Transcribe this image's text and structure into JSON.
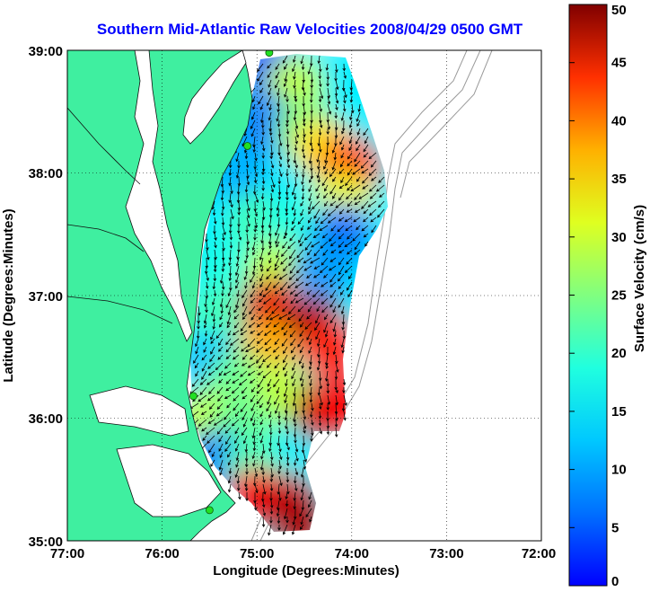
{
  "title": "Southern Mid-Atlantic Raw Velocities 2008/04/29 0500 GMT",
  "x_axis": {
    "label": "Longitude (Degrees:Minutes)",
    "ticks": [
      {
        "value": -77,
        "label": "77:00"
      },
      {
        "value": -76,
        "label": "76:00"
      },
      {
        "value": -75,
        "label": "75:00"
      },
      {
        "value": -74,
        "label": "74:00"
      },
      {
        "value": -73,
        "label": "73:00"
      },
      {
        "value": -72,
        "label": "72:00"
      }
    ],
    "range": [
      -77,
      -72
    ]
  },
  "y_axis": {
    "label": "Latitude (Degrees:Minutes)",
    "ticks": [
      {
        "value": 39,
        "label": "39:00"
      },
      {
        "value": 38,
        "label": "38:00"
      },
      {
        "value": 37,
        "label": "37:00"
      },
      {
        "value": 36,
        "label": "36:00"
      },
      {
        "value": 35,
        "label": "35:00"
      }
    ],
    "range": [
      35,
      39
    ]
  },
  "grid": "dotted",
  "colorbar": {
    "label": "Surface Velocity (cm/s)",
    "range": [
      0,
      50
    ],
    "ticks": [
      {
        "value": 0,
        "label": "0"
      },
      {
        "value": 5,
        "label": "5"
      },
      {
        "value": 10,
        "label": "10"
      },
      {
        "value": 15,
        "label": "15"
      },
      {
        "value": 20,
        "label": "20"
      },
      {
        "value": 25,
        "label": "25"
      },
      {
        "value": 30,
        "label": "30"
      },
      {
        "value": 35,
        "label": "35"
      },
      {
        "value": 40,
        "label": "40"
      },
      {
        "value": 45,
        "label": "45"
      },
      {
        "value": 50,
        "label": "50"
      }
    ],
    "colormap": "jet"
  },
  "colors": {
    "land": "#3fefa0",
    "title": "#0000ff",
    "vectors": "#000000",
    "bathymetry": "#9a9a9a",
    "stations": "#22e022"
  },
  "chart_data": {
    "type": "heatmap",
    "title": "Southern Mid-Atlantic Raw Velocities 2008/04/29 0500 GMT",
    "xlabel": "Longitude (Degrees:Minutes)",
    "ylabel": "Latitude (Degrees:Minutes)",
    "xlim": [
      -77,
      -72
    ],
    "ylim": [
      35,
      39
    ],
    "value_label": "Surface Velocity (cm/s)",
    "value_range": [
      0,
      50
    ],
    "regions": [
      {
        "lon": -74.9,
        "lat": 38.85,
        "speed": 10
      },
      {
        "lon": -74.6,
        "lat": 38.7,
        "speed": 28
      },
      {
        "lon": -74.9,
        "lat": 38.4,
        "speed": 12
      },
      {
        "lon": -74.5,
        "lat": 38.35,
        "speed": 25
      },
      {
        "lon": -74.3,
        "lat": 38.2,
        "speed": 33
      },
      {
        "lon": -74.0,
        "lat": 38.05,
        "speed": 40
      },
      {
        "lon": -74.1,
        "lat": 37.75,
        "speed": 30
      },
      {
        "lon": -75.2,
        "lat": 38.0,
        "speed": 15
      },
      {
        "lon": -75.0,
        "lat": 37.6,
        "speed": 22
      },
      {
        "lon": -74.6,
        "lat": 37.55,
        "speed": 20
      },
      {
        "lon": -74.1,
        "lat": 37.5,
        "speed": 12
      },
      {
        "lon": -75.3,
        "lat": 37.25,
        "speed": 20
      },
      {
        "lon": -74.8,
        "lat": 37.2,
        "speed": 28
      },
      {
        "lon": -74.3,
        "lat": 37.2,
        "speed": 14
      },
      {
        "lon": -75.4,
        "lat": 36.85,
        "speed": 22
      },
      {
        "lon": -74.85,
        "lat": 36.9,
        "speed": 45
      },
      {
        "lon": -74.4,
        "lat": 36.75,
        "speed": 48
      },
      {
        "lon": -74.2,
        "lat": 36.55,
        "speed": 42
      },
      {
        "lon": -74.9,
        "lat": 36.55,
        "speed": 35
      },
      {
        "lon": -75.5,
        "lat": 36.45,
        "speed": 16
      },
      {
        "lon": -75.2,
        "lat": 36.3,
        "speed": 24
      },
      {
        "lon": -74.75,
        "lat": 36.2,
        "speed": 28
      },
      {
        "lon": -74.3,
        "lat": 36.05,
        "speed": 47
      },
      {
        "lon": -74.05,
        "lat": 36.1,
        "speed": 44
      },
      {
        "lon": -75.5,
        "lat": 36.0,
        "speed": 28
      },
      {
        "lon": -75.15,
        "lat": 35.95,
        "speed": 24
      },
      {
        "lon": -75.4,
        "lat": 35.65,
        "speed": 12
      },
      {
        "lon": -75.05,
        "lat": 35.6,
        "speed": 22
      },
      {
        "lon": -75.0,
        "lat": 35.35,
        "speed": 44
      },
      {
        "lon": -74.65,
        "lat": 35.3,
        "speed": 46
      },
      {
        "lon": -74.55,
        "lat": 35.15,
        "speed": 48
      }
    ],
    "stations": [
      {
        "lon": -74.87,
        "lat": 38.98
      },
      {
        "lon": -75.1,
        "lat": 38.22
      },
      {
        "lon": -75.67,
        "lat": 36.18
      },
      {
        "lon": -75.5,
        "lat": 35.25
      }
    ]
  }
}
